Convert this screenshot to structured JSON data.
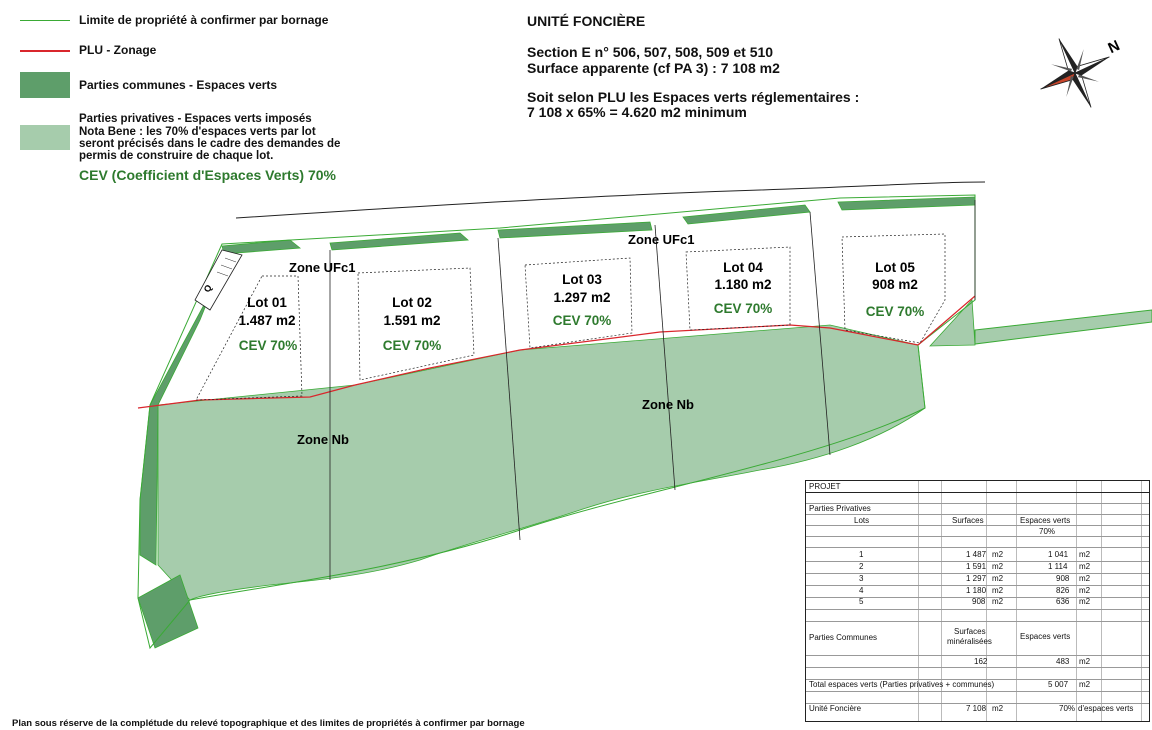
{
  "legend": {
    "items": [
      {
        "label": "Limite de propriété à confirmer par bornage",
        "color": "#3aaa35"
      },
      {
        "label": "PLU - Zonage",
        "color": "#d9262c"
      },
      {
        "label": "Parties communes - Espaces verts",
        "color": "#5e9e6a"
      },
      {
        "label": "Parties privatives - Espaces verts imposés",
        "color": "#a6ccac"
      }
    ],
    "note_lines": [
      "Nota Bene : les 70% d'espaces verts par lot",
      "seront précisés dans le cadre des demandes de",
      "permis de construire de chaque lot."
    ],
    "cev_summary": "CEV (Coefficient d'Espaces Verts) 70%"
  },
  "header": {
    "title": "UNITÉ FONCIÈRE",
    "section": "Section E n° 506, 507, 508, 509 et 510",
    "surface": "Surface apparente (cf PA 3) : 7 108 m2",
    "rule_line1": "Soit selon PLU les Espaces verts réglementaires :",
    "rule_line2": "7 108 x 65% = 4.620 m2 minimum"
  },
  "compass": {
    "icon": "compass-rose-icon",
    "north_label": "N"
  },
  "map": {
    "zone_labels": [
      "Zone UFc1",
      "Zone UFc1",
      "Zone Nb",
      "Zone Nb"
    ],
    "lots": [
      {
        "name": "Lot 01",
        "area": "1.487 m2",
        "cev": "CEV 70%"
      },
      {
        "name": "Lot 02",
        "area": "1.591 m2",
        "cev": "CEV 70%"
      },
      {
        "name": "Lot 03",
        "area": "1.297 m2",
        "cev": "CEV 70%"
      },
      {
        "name": "Lot 04",
        "area": "1.180 m2",
        "cev": "CEV 70%"
      },
      {
        "name": "Lot 05",
        "area": "908 m2",
        "cev": "CEV 70%"
      }
    ],
    "small_mark": "Q"
  },
  "table": {
    "title": "PROJET",
    "private_title": "Parties Privatives",
    "col_lots": "Lots",
    "col_surfaces": "Surfaces",
    "col_green": "Espaces verts",
    "col_green_pct": "70%",
    "rows": [
      {
        "lot": "1",
        "surface": "1 487",
        "green": "1 041"
      },
      {
        "lot": "2",
        "surface": "1 591",
        "green": "1 114"
      },
      {
        "lot": "3",
        "surface": "1 297",
        "green": "908"
      },
      {
        "lot": "4",
        "surface": "1 180",
        "green": "826"
      },
      {
        "lot": "5",
        "surface": "908",
        "green": "636"
      }
    ],
    "unit": "m2",
    "common_title": "Parties Communes",
    "common_col_surfaces_1": "Surfaces",
    "common_col_surfaces_2": "minéralisées",
    "common_col_green": "Espaces verts",
    "common_surface": "162",
    "common_green": "483",
    "total_label": "Total espaces verts (Parties privatives + communes)",
    "total_value": "5 007",
    "uf_label": "Unité Foncière",
    "uf_value": "7 108",
    "uf_pct": "70%",
    "uf_pct_label": "d'espaces verts"
  },
  "footer": {
    "note": "Plan sous réserve de la complétude du relevé topographique et des limites de propriétés à confirmer par bornage"
  }
}
